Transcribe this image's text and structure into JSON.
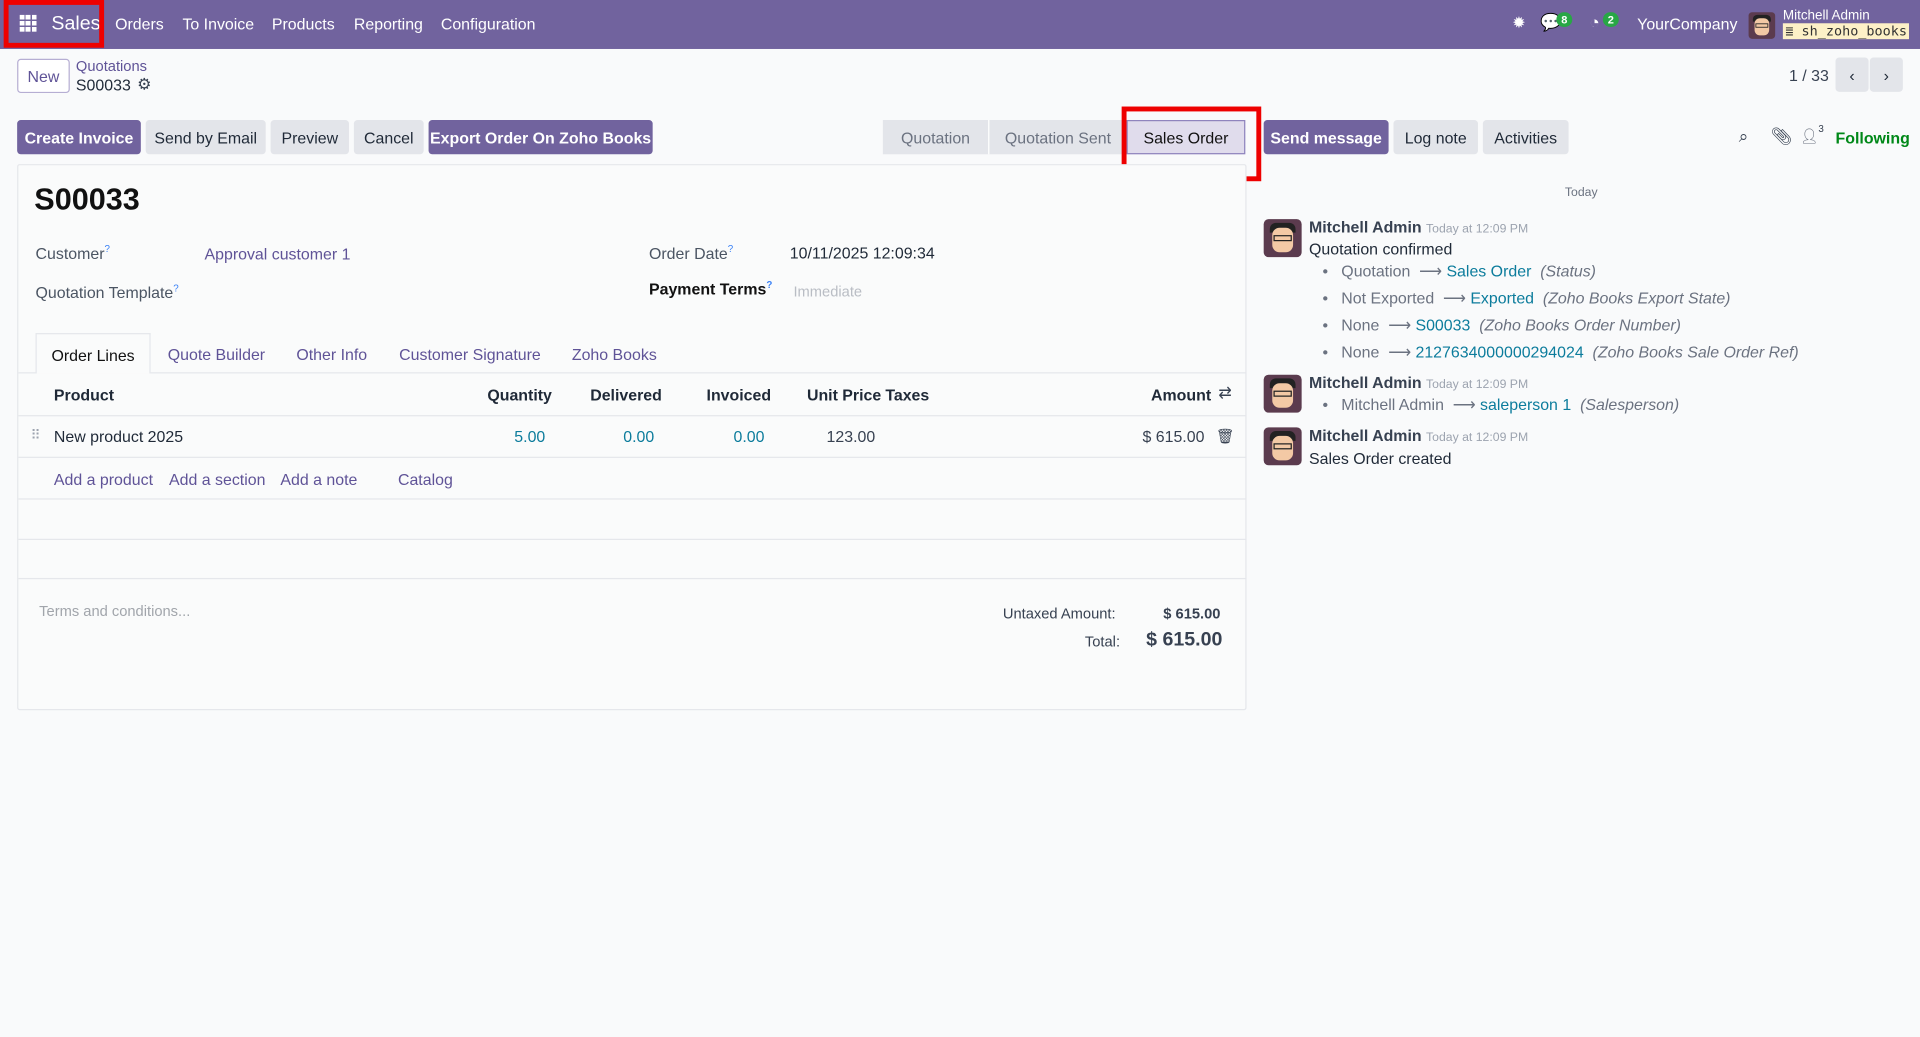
{
  "nav": {
    "app": "Sales",
    "menu": [
      "Orders",
      "To Invoice",
      "Products",
      "Reporting",
      "Configuration"
    ],
    "chat_count": "8",
    "activity_count": "2",
    "company": "YourCompany",
    "user": "Mitchell Admin",
    "database": "sh_zoho_books"
  },
  "breadcrumb": {
    "new": "New",
    "parent": "Quotations",
    "current": "S00033"
  },
  "pager": "1 / 33",
  "actions": [
    "Create Invoice",
    "Send by Email",
    "Preview",
    "Cancel",
    "Export Order On Zoho Books"
  ],
  "status": {
    "steps": [
      "Quotation",
      "Quotation Sent",
      "Sales Order"
    ],
    "active": "Sales Order"
  },
  "chatter": {
    "send": "Send message",
    "log": "Log note",
    "activities": "Activities",
    "followers": "3",
    "following": "Following",
    "day": "Today",
    "messages": [
      {
        "author": "Mitchell Admin",
        "time": "Today at 12:09 PM",
        "body": "Quotation confirmed",
        "changes": [
          {
            "old": "Quotation",
            "new": "Sales Order",
            "field": "(Status)"
          },
          {
            "old": "Not Exported",
            "new": "Exported",
            "field": "(Zoho Books Export State)"
          },
          {
            "old": "None",
            "new": "S00033",
            "field": "(Zoho Books Order Number)"
          },
          {
            "old": "None",
            "new": "2127634000000294024",
            "field": "(Zoho Books Sale Order Ref)"
          }
        ]
      },
      {
        "author": "Mitchell Admin",
        "time": "Today at 12:09 PM",
        "changes": [
          {
            "old": "Mitchell Admin",
            "new": "saleperson 1",
            "field": "(Salesperson)"
          }
        ]
      },
      {
        "author": "Mitchell Admin",
        "time": "Today at 12:09 PM",
        "body": "Sales Order created"
      }
    ]
  },
  "form": {
    "title": "S00033",
    "customer_label": "Customer",
    "customer": "Approval customer 1",
    "template_label": "Quotation Template",
    "date_label": "Order Date",
    "date": "10/11/2025 12:09:34",
    "terms_label": "Payment Terms",
    "terms_placeholder": "Immediate",
    "tabs": [
      "Order Lines",
      "Quote Builder",
      "Other Info",
      "Customer Signature",
      "Zoho Books"
    ],
    "columns": [
      "Product",
      "Quantity",
      "Delivered",
      "Invoiced",
      "Unit Price",
      "Taxes",
      "Amount"
    ],
    "lines": [
      {
        "product": "New product 2025",
        "qty": "5.00",
        "delivered": "0.00",
        "invoiced": "0.00",
        "price": "123.00",
        "taxes": "",
        "amount": "$ 615.00"
      }
    ],
    "add": [
      "Add a product",
      "Add a section",
      "Add a note",
      "Catalog"
    ],
    "terms_placeholder_note": "Terms and conditions...",
    "untaxed_label": "Untaxed Amount:",
    "untaxed": "$ 615.00",
    "total_label": "Total:",
    "total": "$ 615.00"
  },
  "colors": {
    "brand": "#71639e",
    "link": "#5f5397",
    "teal": "#0c7c9c",
    "following": "#008818",
    "highlight": "#ee0000"
  }
}
